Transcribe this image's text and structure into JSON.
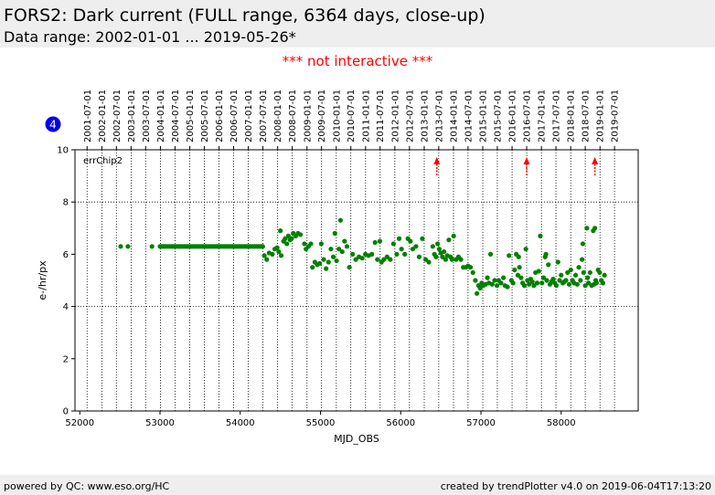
{
  "header": {
    "title": "FORS2: Dark current (FULL range, 6364 days, close-up)",
    "subtitle": "Data range: 2002-01-01 ... 2019-05-26*"
  },
  "notice": "*** not interactive ***",
  "footer": {
    "left": "powered by QC: www.eso.org/HC",
    "right": "created by trendPlotter v4.0 on 2019-06-04T17:13:20"
  },
  "badge": {
    "value": "4",
    "color": "#0000ee"
  },
  "colors": {
    "points": "#008000",
    "arrows": "#ff0000",
    "text_notice": "#ff0000"
  },
  "chart_data": {
    "type": "scatter",
    "xlabel": "MJD_OBS",
    "ylabel": "e-/hr/px",
    "xlim": [
      51940,
      58960
    ],
    "ylim": [
      0,
      10
    ],
    "x_ticks": [
      52000,
      53000,
      54000,
      55000,
      56000,
      57000,
      58000
    ],
    "y_ticks": [
      0,
      2,
      4,
      6,
      8,
      10
    ],
    "grid": "dotted-vertical-at-dates-and-horizontal-at-4-8",
    "annotation": "errChip2",
    "date_ticks": [
      {
        "label": "2001-07-01",
        "mjd": 52091
      },
      {
        "label": "2002-01-01",
        "mjd": 52275
      },
      {
        "label": "2002-07-01",
        "mjd": 52456
      },
      {
        "label": "2003-01-01",
        "mjd": 52640
      },
      {
        "label": "2003-07-01",
        "mjd": 52821
      },
      {
        "label": "2004-01-01",
        "mjd": 53005
      },
      {
        "label": "2004-07-01",
        "mjd": 53187
      },
      {
        "label": "2005-01-01",
        "mjd": 53371
      },
      {
        "label": "2005-07-01",
        "mjd": 53552
      },
      {
        "label": "2006-01-01",
        "mjd": 53736
      },
      {
        "label": "2006-07-01",
        "mjd": 53917
      },
      {
        "label": "2007-01-01",
        "mjd": 54101
      },
      {
        "label": "2007-07-01",
        "mjd": 54282
      },
      {
        "label": "2008-01-01",
        "mjd": 54466
      },
      {
        "label": "2008-07-01",
        "mjd": 54648
      },
      {
        "label": "2009-01-01",
        "mjd": 54832
      },
      {
        "label": "2009-07-01",
        "mjd": 55013
      },
      {
        "label": "2010-01-01",
        "mjd": 55197
      },
      {
        "label": "2010-07-01",
        "mjd": 55378
      },
      {
        "label": "2011-01-01",
        "mjd": 55562
      },
      {
        "label": "2011-07-01",
        "mjd": 55743
      },
      {
        "label": "2012-01-01",
        "mjd": 55927
      },
      {
        "label": "2012-07-01",
        "mjd": 56109
      },
      {
        "label": "2013-01-01",
        "mjd": 56293
      },
      {
        "label": "2013-07-01",
        "mjd": 56474
      },
      {
        "label": "2014-01-01",
        "mjd": 56658
      },
      {
        "label": "2014-07-01",
        "mjd": 56839
      },
      {
        "label": "2015-01-01",
        "mjd": 57023
      },
      {
        "label": "2015-07-01",
        "mjd": 57204
      },
      {
        "label": "2016-01-01",
        "mjd": 57388
      },
      {
        "label": "2016-07-01",
        "mjd": 57570
      },
      {
        "label": "2017-01-01",
        "mjd": 57754
      },
      {
        "label": "2017-07-01",
        "mjd": 57935
      },
      {
        "label": "2018-01-01",
        "mjd": 58119
      },
      {
        "label": "2018-07-01",
        "mjd": 58300
      },
      {
        "label": "2019-01-01",
        "mjd": 58484
      },
      {
        "label": "2019-07-01",
        "mjd": 58665
      }
    ],
    "markers": [
      56450,
      57570,
      58420
    ],
    "series": [
      {
        "points": [
          [
            52510,
            6.3
          ],
          [
            52600,
            6.3
          ],
          [
            52900,
            6.3
          ],
          [
            53000,
            6.3
          ],
          [
            53020,
            6.3
          ],
          [
            53040,
            6.3
          ],
          [
            53060,
            6.3
          ],
          [
            53080,
            6.3
          ],
          [
            53100,
            6.3
          ],
          [
            53120,
            6.3
          ],
          [
            53140,
            6.3
          ],
          [
            53160,
            6.3
          ],
          [
            53180,
            6.3
          ],
          [
            53200,
            6.3
          ],
          [
            53220,
            6.3
          ],
          [
            53240,
            6.3
          ],
          [
            53260,
            6.3
          ],
          [
            53280,
            6.3
          ],
          [
            53300,
            6.3
          ],
          [
            53320,
            6.3
          ],
          [
            53340,
            6.3
          ],
          [
            53360,
            6.3
          ],
          [
            53380,
            6.3
          ],
          [
            53400,
            6.3
          ],
          [
            53420,
            6.3
          ],
          [
            53440,
            6.3
          ],
          [
            53460,
            6.3
          ],
          [
            53480,
            6.3
          ],
          [
            53500,
            6.3
          ],
          [
            53520,
            6.3
          ],
          [
            53540,
            6.3
          ],
          [
            53560,
            6.3
          ],
          [
            53580,
            6.3
          ],
          [
            53600,
            6.3
          ],
          [
            53620,
            6.3
          ],
          [
            53640,
            6.3
          ],
          [
            53660,
            6.3
          ],
          [
            53680,
            6.3
          ],
          [
            53700,
            6.3
          ],
          [
            53720,
            6.3
          ],
          [
            53740,
            6.3
          ],
          [
            53760,
            6.3
          ],
          [
            53780,
            6.3
          ],
          [
            53800,
            6.3
          ],
          [
            53820,
            6.3
          ],
          [
            53840,
            6.3
          ],
          [
            53860,
            6.3
          ],
          [
            53880,
            6.3
          ],
          [
            53900,
            6.3
          ],
          [
            53920,
            6.3
          ],
          [
            53940,
            6.3
          ],
          [
            53960,
            6.3
          ],
          [
            53980,
            6.3
          ],
          [
            54000,
            6.3
          ],
          [
            54020,
            6.3
          ],
          [
            54040,
            6.3
          ],
          [
            54060,
            6.3
          ],
          [
            54080,
            6.3
          ],
          [
            54100,
            6.3
          ],
          [
            54120,
            6.3
          ],
          [
            54140,
            6.3
          ],
          [
            54160,
            6.3
          ],
          [
            54180,
            6.3
          ],
          [
            54200,
            6.3
          ],
          [
            54220,
            6.3
          ],
          [
            54240,
            6.3
          ],
          [
            54260,
            6.3
          ],
          [
            54280,
            6.3
          ],
          [
            54300,
            5.95
          ],
          [
            54330,
            5.8
          ],
          [
            54360,
            6.05
          ],
          [
            54400,
            6.0
          ],
          [
            54430,
            6.2
          ],
          [
            54460,
            6.25
          ],
          [
            54480,
            6.1
          ],
          [
            54500,
            6.9
          ],
          [
            54510,
            5.95
          ],
          [
            54540,
            6.5
          ],
          [
            54560,
            6.6
          ],
          [
            54580,
            6.4
          ],
          [
            54600,
            6.7
          ],
          [
            54620,
            6.55
          ],
          [
            54640,
            6.6
          ],
          [
            54660,
            6.8
          ],
          [
            54690,
            6.7
          ],
          [
            54720,
            6.8
          ],
          [
            54750,
            6.75
          ],
          [
            54800,
            6.4
          ],
          [
            54820,
            6.2
          ],
          [
            54850,
            6.3
          ],
          [
            54880,
            6.4
          ],
          [
            54900,
            5.5
          ],
          [
            54930,
            5.7
          ],
          [
            54960,
            5.6
          ],
          [
            54990,
            5.65
          ],
          [
            55010,
            6.4
          ],
          [
            55040,
            5.8
          ],
          [
            55070,
            5.45
          ],
          [
            55100,
            5.7
          ],
          [
            55130,
            6.2
          ],
          [
            55160,
            5.9
          ],
          [
            55180,
            6.8
          ],
          [
            55200,
            5.75
          ],
          [
            55230,
            6.2
          ],
          [
            55250,
            7.3
          ],
          [
            55270,
            6.1
          ],
          [
            55300,
            6.5
          ],
          [
            55330,
            6.3
          ],
          [
            55360,
            5.5
          ],
          [
            55400,
            6.0
          ],
          [
            55440,
            5.8
          ],
          [
            55480,
            5.9
          ],
          [
            55520,
            5.85
          ],
          [
            55560,
            6.0
          ],
          [
            55600,
            5.95
          ],
          [
            55640,
            6.0
          ],
          [
            55680,
            6.45
          ],
          [
            55710,
            5.8
          ],
          [
            55740,
            6.5
          ],
          [
            55760,
            5.7
          ],
          [
            55790,
            5.8
          ],
          [
            55830,
            5.9
          ],
          [
            55870,
            5.8
          ],
          [
            55910,
            6.4
          ],
          [
            55950,
            6.0
          ],
          [
            55980,
            6.6
          ],
          [
            56010,
            6.2
          ],
          [
            56050,
            6.0
          ],
          [
            56090,
            6.6
          ],
          [
            56120,
            6.5
          ],
          [
            56150,
            6.2
          ],
          [
            56190,
            6.3
          ],
          [
            56230,
            5.9
          ],
          [
            56270,
            6.6
          ],
          [
            56310,
            5.8
          ],
          [
            56350,
            5.7
          ],
          [
            56400,
            6.3
          ],
          [
            56420,
            6.0
          ],
          [
            56440,
            5.9
          ],
          [
            56460,
            6.4
          ],
          [
            56480,
            6.2
          ],
          [
            56500,
            6.05
          ],
          [
            56520,
            5.9
          ],
          [
            56540,
            6.1
          ],
          [
            56560,
            5.8
          ],
          [
            56580,
            5.95
          ],
          [
            56600,
            6.55
          ],
          [
            56620,
            5.9
          ],
          [
            56640,
            5.8
          ],
          [
            56660,
            6.7
          ],
          [
            56690,
            5.8
          ],
          [
            56720,
            5.9
          ],
          [
            56750,
            5.8
          ],
          [
            56780,
            5.5
          ],
          [
            56810,
            5.5
          ],
          [
            56840,
            5.55
          ],
          [
            56870,
            5.5
          ],
          [
            56900,
            5.3
          ],
          [
            56930,
            5.0
          ],
          [
            56950,
            4.5
          ],
          [
            56970,
            4.8
          ],
          [
            56990,
            4.7
          ],
          [
            57010,
            4.9
          ],
          [
            57030,
            4.8
          ],
          [
            57060,
            4.85
          ],
          [
            57080,
            5.1
          ],
          [
            57100,
            4.9
          ],
          [
            57120,
            6.0
          ],
          [
            57140,
            4.85
          ],
          [
            57170,
            5.0
          ],
          [
            57200,
            4.8
          ],
          [
            57220,
            5.0
          ],
          [
            57250,
            4.9
          ],
          [
            57280,
            5.1
          ],
          [
            57300,
            4.8
          ],
          [
            57330,
            4.75
          ],
          [
            57350,
            5.95
          ],
          [
            57380,
            5.0
          ],
          [
            57400,
            4.9
          ],
          [
            57420,
            5.4
          ],
          [
            57440,
            6.0
          ],
          [
            57460,
            5.2
          ],
          [
            57470,
            5.9
          ],
          [
            57480,
            5.5
          ],
          [
            57500,
            5.1
          ],
          [
            57520,
            4.9
          ],
          [
            57540,
            4.8
          ],
          [
            57560,
            6.2
          ],
          [
            57580,
            5.0
          ],
          [
            57600,
            4.85
          ],
          [
            57620,
            5.05
          ],
          [
            57640,
            4.95
          ],
          [
            57660,
            4.8
          ],
          [
            57680,
            5.3
          ],
          [
            57700,
            4.9
          ],
          [
            57720,
            5.35
          ],
          [
            57740,
            6.7
          ],
          [
            57760,
            4.9
          ],
          [
            57780,
            5.1
          ],
          [
            57800,
            5.9
          ],
          [
            57810,
            6.0
          ],
          [
            57820,
            5.0
          ],
          [
            57840,
            5.6
          ],
          [
            57860,
            4.85
          ],
          [
            57880,
            4.95
          ],
          [
            57900,
            5.05
          ],
          [
            57920,
            4.9
          ],
          [
            57940,
            4.8
          ],
          [
            57960,
            5.7
          ],
          [
            57980,
            5.0
          ],
          [
            58000,
            5.2
          ],
          [
            58020,
            4.9
          ],
          [
            58040,
            4.95
          ],
          [
            58060,
            5.0
          ],
          [
            58080,
            5.3
          ],
          [
            58100,
            4.85
          ],
          [
            58120,
            5.4
          ],
          [
            58140,
            5.0
          ],
          [
            58160,
            4.9
          ],
          [
            58180,
            5.2
          ],
          [
            58200,
            4.85
          ],
          [
            58220,
            5.5
          ],
          [
            58240,
            5.0
          ],
          [
            58260,
            5.8
          ],
          [
            58270,
            6.4
          ],
          [
            58280,
            5.3
          ],
          [
            58300,
            4.8
          ],
          [
            58320,
            7.0
          ],
          [
            58330,
            5.1
          ],
          [
            58340,
            4.9
          ],
          [
            58360,
            5.3
          ],
          [
            58380,
            4.8
          ],
          [
            58400,
            6.9
          ],
          [
            58410,
            4.85
          ],
          [
            58420,
            7.0
          ],
          [
            58430,
            5.0
          ],
          [
            58440,
            4.9
          ],
          [
            58460,
            5.4
          ],
          [
            58480,
            5.3
          ],
          [
            58500,
            5.0
          ],
          [
            58520,
            4.9
          ],
          [
            58540,
            5.2
          ]
        ]
      }
    ]
  }
}
